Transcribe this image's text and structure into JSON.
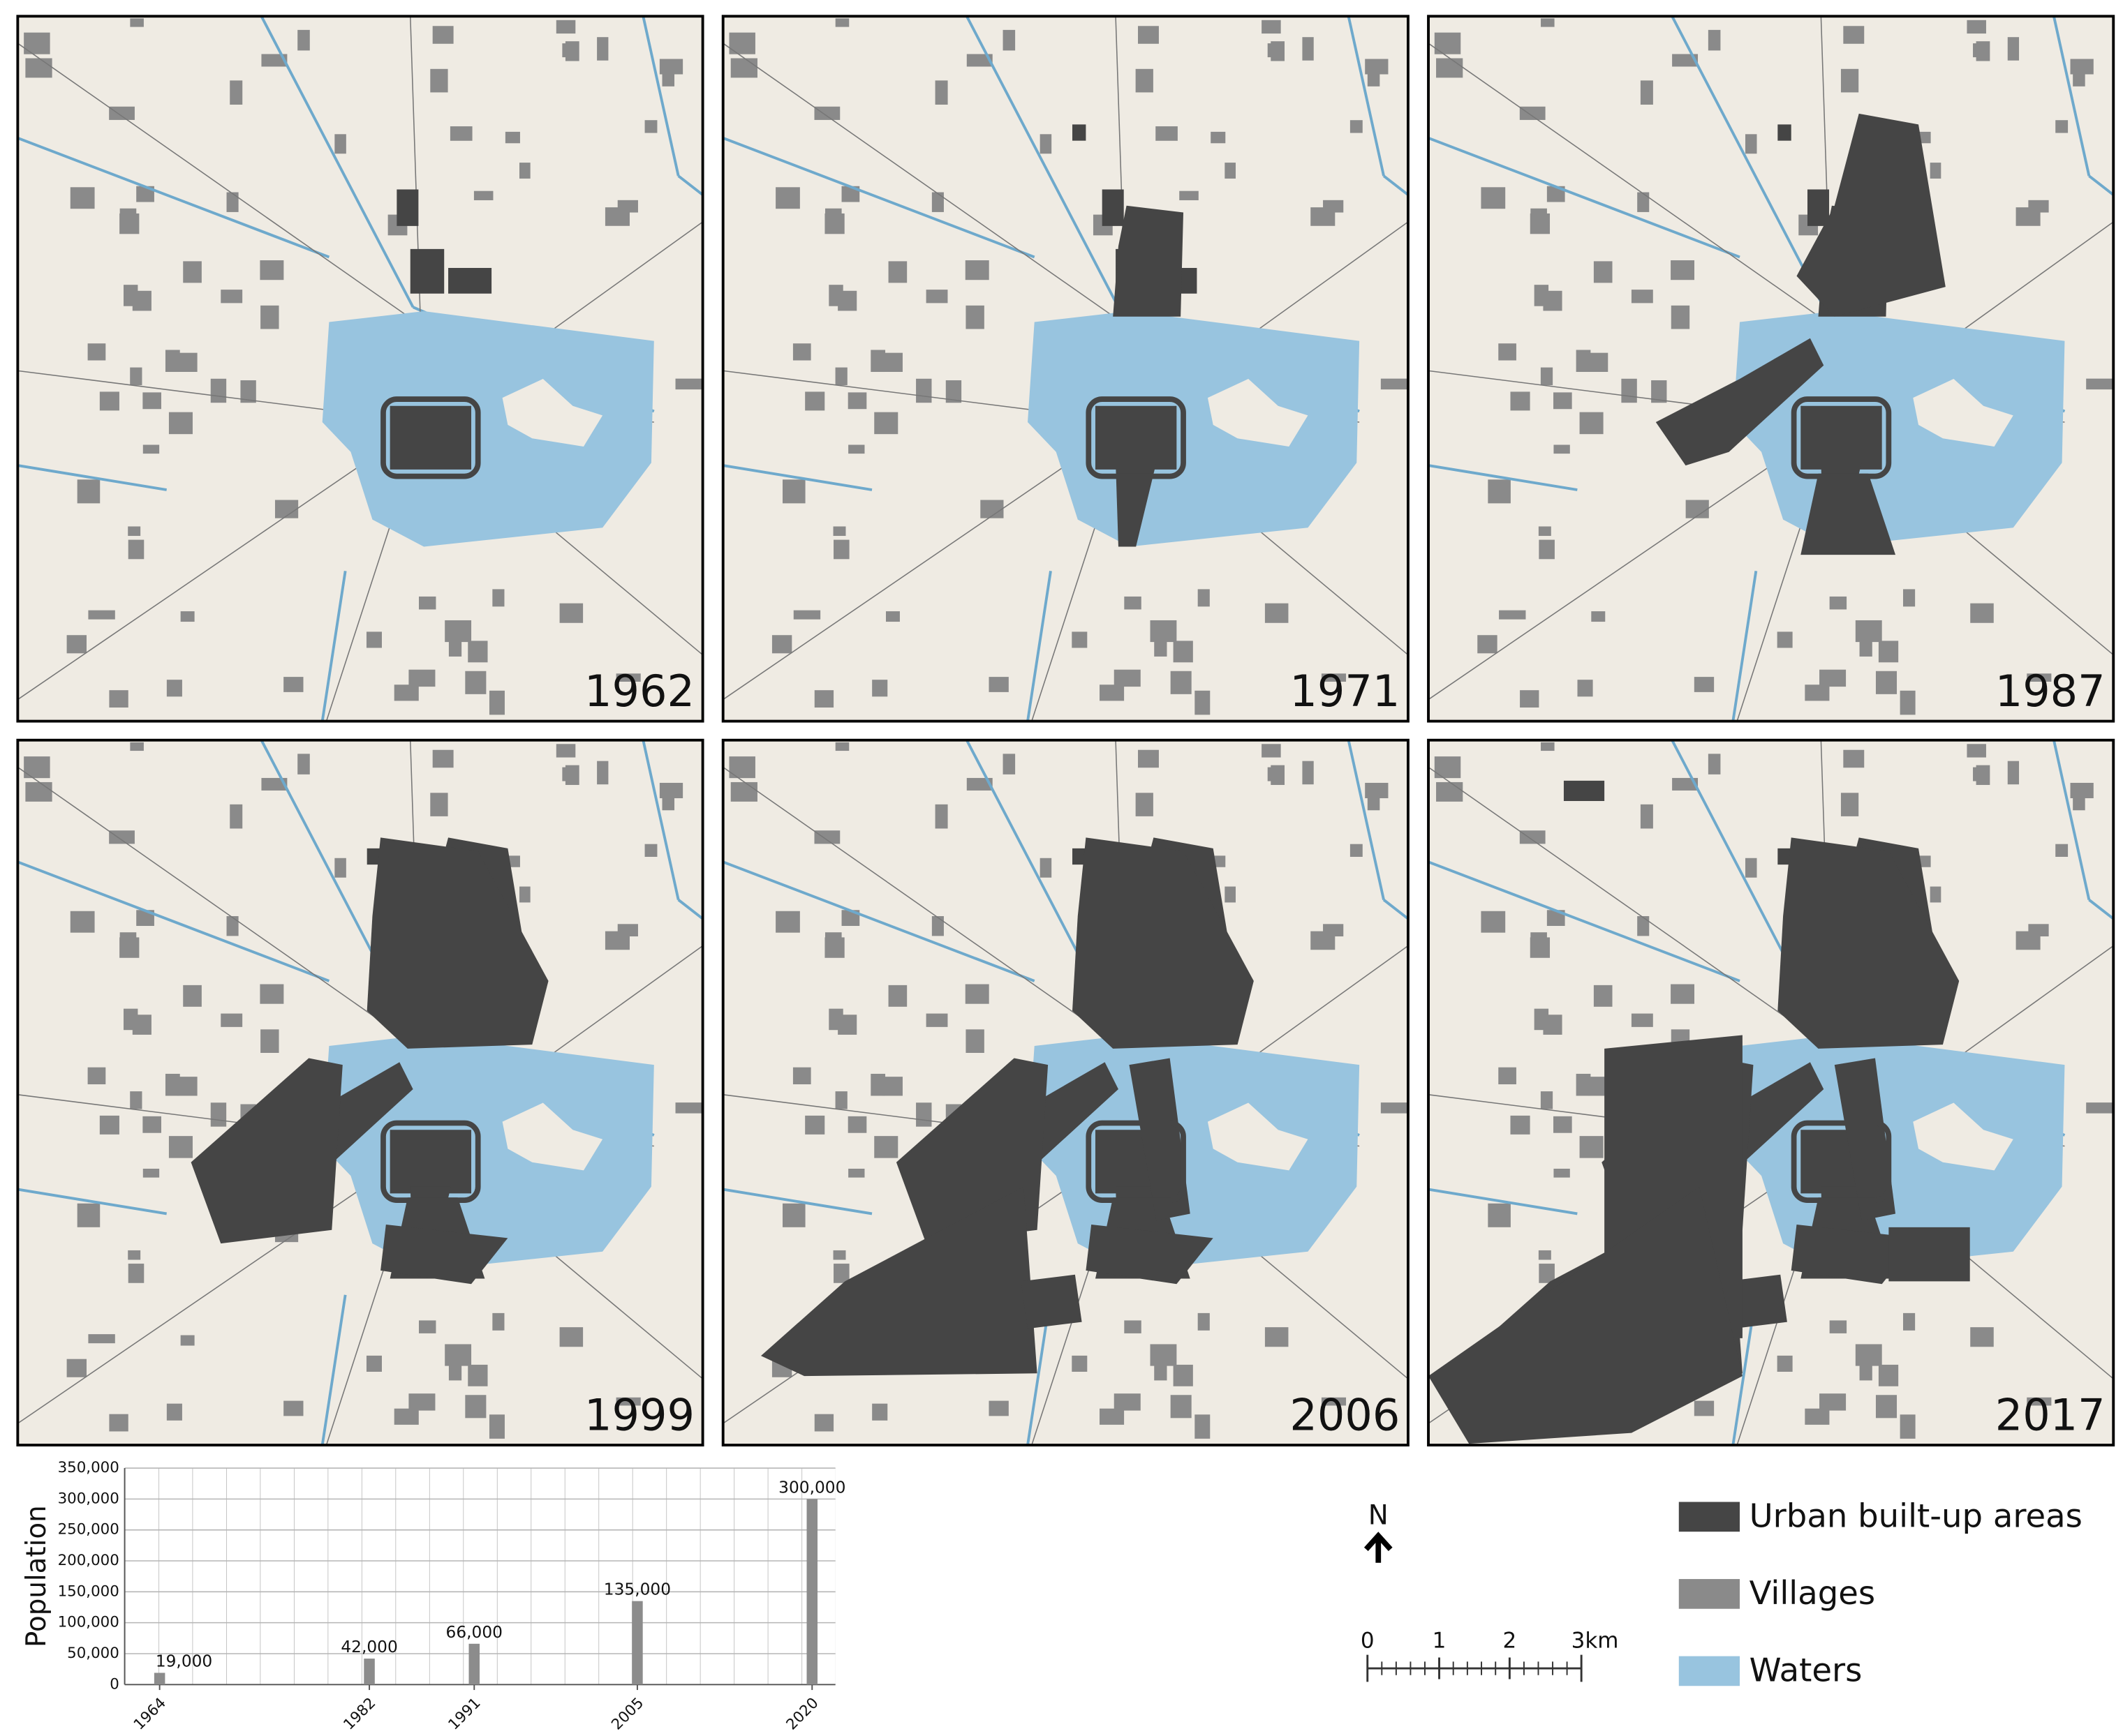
{
  "maps": [
    {
      "year": "1962"
    },
    {
      "year": "1971"
    },
    {
      "year": "1987"
    },
    {
      "year": "1999"
    },
    {
      "year": "2006"
    },
    {
      "year": "2017"
    }
  ],
  "legend": {
    "items": [
      "Urban built-up areas",
      "Villages",
      "Waters"
    ],
    "colors": [
      "#454545",
      "#8a8a8a",
      "#98c4df"
    ]
  },
  "north": "N",
  "scale_bar": {
    "labels": [
      "0",
      "1",
      "2",
      "3km"
    ]
  },
  "chart_data": {
    "type": "bar",
    "y_label": "Population",
    "x": [
      1964,
      1982,
      1991,
      2005,
      2020
    ],
    "values": [
      19000,
      42000,
      66000,
      135000,
      300000
    ],
    "value_labels": [
      "19,000",
      "42,000",
      "66,000",
      "135,000",
      "300,000"
    ],
    "color": "#8c8c8c",
    "xlim": [
      1961,
      2022
    ],
    "xticks": [
      1964,
      1982,
      1991,
      2005,
      2020
    ],
    "ylim": [
      0,
      350000
    ],
    "yticks": [
      0,
      {
        "value": 50000,
        "label": "50,000"
      },
      {
        "value": 100000,
        "label": "100,000"
      },
      {
        "value": 150000,
        "label": "150,000"
      },
      {
        "value": 200000,
        "label": "200,000"
      },
      {
        "value": 250000,
        "label": "250,000"
      },
      {
        "value": 300000,
        "label": "300,000"
      },
      {
        "value": 350000,
        "label": "350,000"
      }
    ],
    "grid": true
  }
}
